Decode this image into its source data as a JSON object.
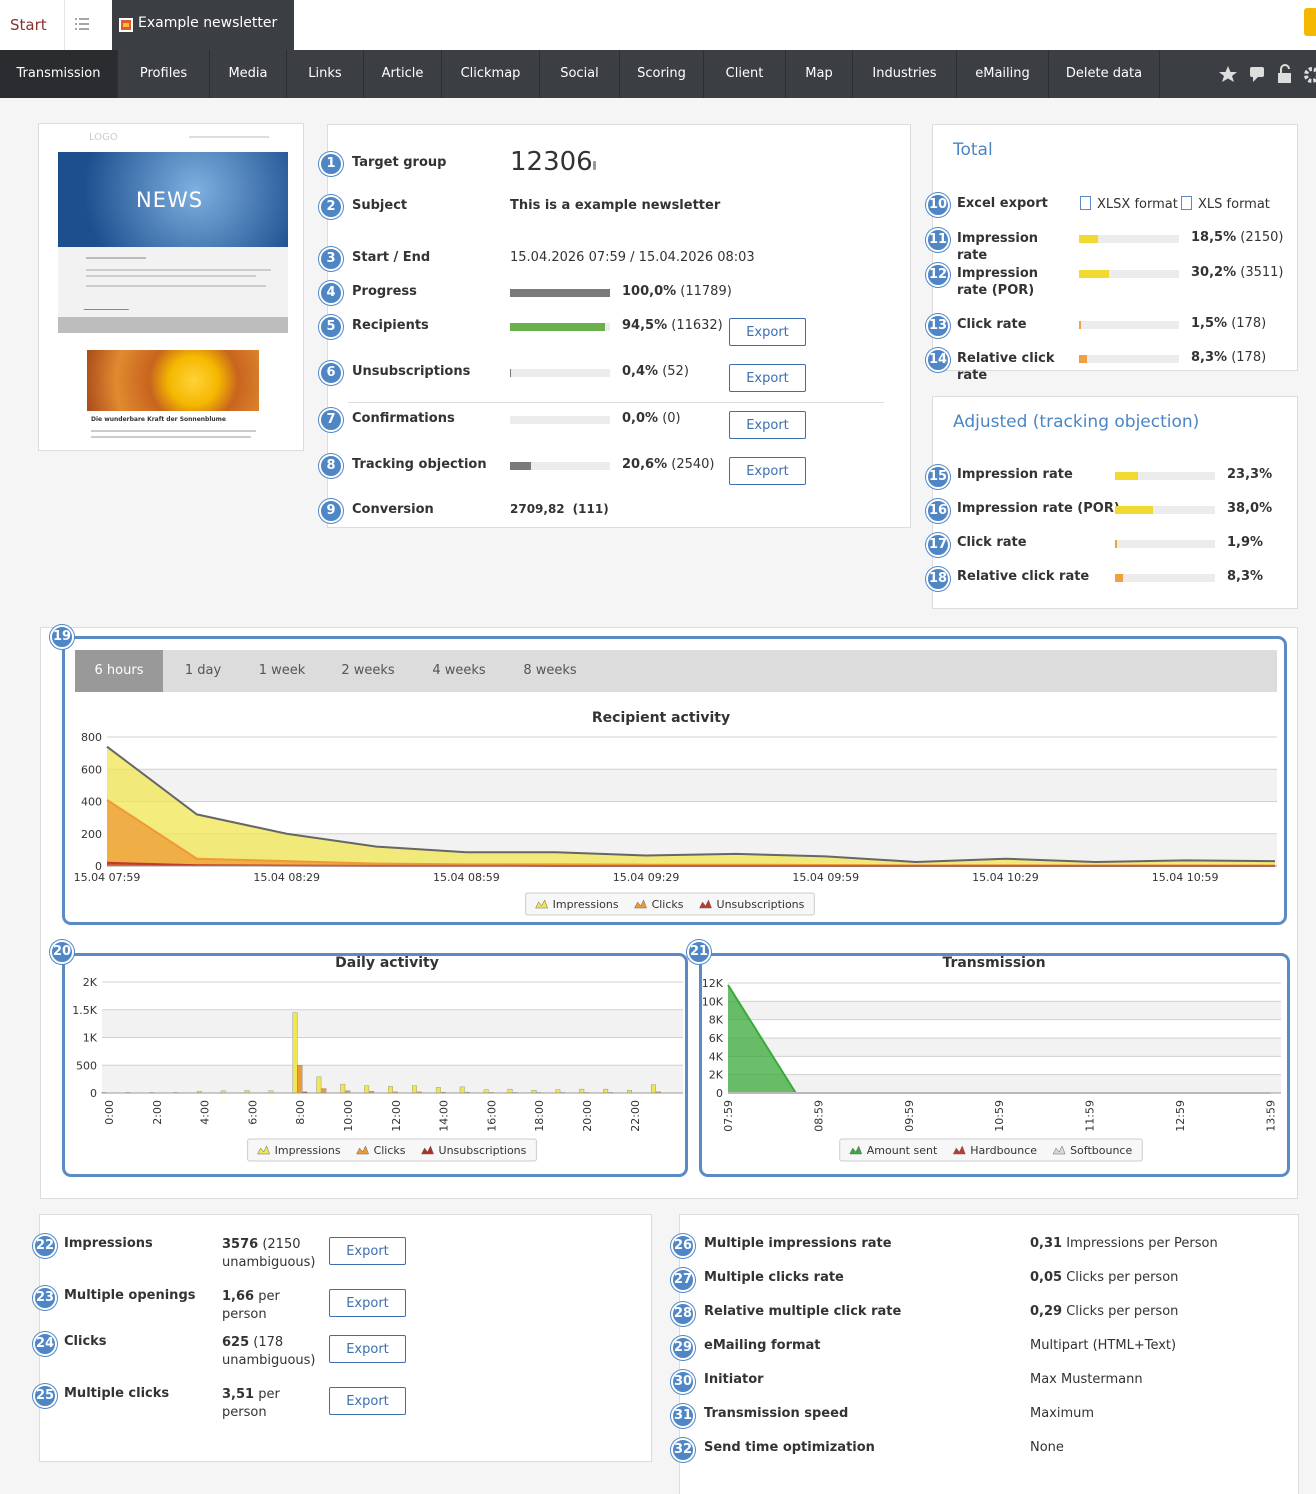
{
  "header": {
    "start": "Start",
    "tab": "Example newsletter"
  },
  "nav": [
    "Transmission",
    "Profiles",
    "Media",
    "Links",
    "Article",
    "Clickmap",
    "Social",
    "Scoring",
    "Client",
    "Map",
    "Industries",
    "eMailing",
    "Delete data"
  ],
  "preview": {
    "logo": "LOGO",
    "banner": "NEWS",
    "article_title": "Die wunderbare Kraft der Sonnenblume"
  },
  "summary": [
    {
      "badge": 1,
      "label": "Target group",
      "value": 12306
    },
    {
      "badge": 2,
      "label": "Subject",
      "text": "This is a example newsletter"
    },
    {
      "badge": 3,
      "label": "Start / End",
      "text": "15.04.2026 07:59 / 15.04.2026 08:03"
    },
    {
      "badge": 4,
      "label": "Progress",
      "percent": {
        "value": 100.0,
        "label": "100,0%"
      },
      "count": "(11789)",
      "color": "#7a7a7a"
    },
    {
      "badge": 5,
      "label": "Recipients",
      "percent": {
        "value": 94.5,
        "label": "94,5%"
      },
      "count": "(11632)",
      "color": "#6ab04c",
      "export": "Export"
    },
    {
      "badge": 6,
      "label": "Unsubscriptions",
      "percent": {
        "value": 0.4,
        "label": "0,4%"
      },
      "count": "(52)",
      "color": "#7a7a7a",
      "export": "Export"
    },
    {
      "badge": 7,
      "label": "Confirmations",
      "percent": {
        "value": 0.0,
        "label": "0,0%"
      },
      "count": "(0)",
      "color": "#7a7a7a",
      "export": "Export"
    },
    {
      "badge": 8,
      "label": "Tracking objection",
      "percent": {
        "value": 20.6,
        "label": "20,6%"
      },
      "count": "(2540)",
      "color": "#7a7a7a",
      "export": "Export"
    },
    {
      "badge": 9,
      "label": "Conversion",
      "amount": "2709,82",
      "count": "(111)"
    }
  ],
  "total": {
    "title": "Total",
    "excel_export": {
      "badge": 10,
      "label": "Excel export",
      "formats": [
        "XLSX format",
        "XLS format"
      ]
    },
    "rows": [
      {
        "badge": 11,
        "label": "Impression rate",
        "percent": {
          "value": 18.5,
          "label": "18,5%"
        },
        "count": "(2150)",
        "color": "#f2d930"
      },
      {
        "badge": 12,
        "label": "Impression rate (POR)",
        "percent": {
          "value": 30.2,
          "label": "30,2%"
        },
        "count": "(3511)",
        "color": "#f2d930"
      },
      {
        "badge": 13,
        "label": "Click rate",
        "percent": {
          "value": 1.5,
          "label": "1,5%"
        },
        "count": "(178)",
        "color": "#f0a040"
      },
      {
        "badge": 14,
        "label": "Relative click rate",
        "percent": {
          "value": 8.3,
          "label": "8,3%"
        },
        "count": "(178)",
        "color": "#f0a040"
      }
    ]
  },
  "adjusted": {
    "title": "Adjusted (tracking objection)",
    "rows": [
      {
        "badge": 15,
        "label": "Impression rate",
        "percent": {
          "value": 23.3,
          "label": "23,3%"
        },
        "color": "#f2d930"
      },
      {
        "badge": 16,
        "label": "Impression rate (POR)",
        "percent": {
          "value": 38.0,
          "label": "38,0%"
        },
        "color": "#f2d930"
      },
      {
        "badge": 17,
        "label": "Click rate",
        "percent": {
          "value": 1.9,
          "label": "1,9%"
        },
        "color": "#f0a040"
      },
      {
        "badge": 18,
        "label": "Relative click rate",
        "percent": {
          "value": 8.3,
          "label": "8,3%"
        },
        "color": "#f0a040"
      }
    ]
  },
  "chart_data": [
    {
      "type": "area",
      "badge": 19,
      "tabs": [
        "6 hours",
        "1 day",
        "1 week",
        "2 weeks",
        "4 weeks",
        "8 weeks"
      ],
      "title": "Recipient activity",
      "categories": [
        "15.04 07:59",
        null,
        "15.04 08:29",
        null,
        "15.04 08:59",
        null,
        "15.04 09:29",
        null,
        "15.04 09:59",
        null,
        "15.04 10:29",
        null,
        "15.04 10:59",
        null
      ],
      "series": [
        {
          "name": "Impressions",
          "color": "#f0e650",
          "values": [
            740,
            320,
            200,
            120,
            85,
            85,
            65,
            75,
            60,
            25,
            45,
            25,
            35,
            30
          ]
        },
        {
          "name": "Clicks",
          "color": "#ee9a35",
          "values": [
            410,
            45,
            30,
            15,
            10,
            10,
            8,
            8,
            6,
            4,
            5,
            3,
            4,
            3
          ]
        },
        {
          "name": "Unsubscriptions",
          "color": "#c0392b",
          "values": [
            20,
            5,
            2,
            1,
            1,
            0,
            0,
            0,
            0,
            0,
            0,
            0,
            0,
            0
          ]
        }
      ],
      "ylim": [
        0,
        800
      ],
      "yticks": [
        0,
        200,
        400,
        600,
        800
      ],
      "grid": true
    },
    {
      "type": "bar",
      "badge": 20,
      "title": "Daily activity",
      "categories": [
        "0:00",
        null,
        "2:00",
        null,
        "4:00",
        null,
        "6:00",
        null,
        "8:00",
        null,
        "10:00",
        null,
        "12:00",
        null,
        "14:00",
        null,
        "16:00",
        null,
        "18:00",
        null,
        "20:00",
        null,
        "22:00",
        null
      ],
      "series": [
        {
          "name": "Impressions",
          "color": "#f0e650",
          "values": [
            10,
            10,
            10,
            10,
            30,
            40,
            45,
            40,
            1450,
            290,
            160,
            130,
            120,
            130,
            100,
            110,
            60,
            70,
            50,
            60,
            70,
            70,
            50,
            150
          ]
        },
        {
          "name": "Clicks",
          "color": "#ee9a35",
          "values": [
            0,
            0,
            0,
            0,
            5,
            5,
            5,
            5,
            500,
            80,
            40,
            30,
            20,
            20,
            15,
            15,
            10,
            10,
            10,
            10,
            10,
            10,
            5,
            20
          ]
        },
        {
          "name": "Unsubscriptions",
          "color": "#b03020",
          "values": [
            0,
            0,
            0,
            0,
            0,
            0,
            0,
            0,
            20,
            5,
            2,
            1,
            1,
            1,
            0,
            0,
            0,
            0,
            0,
            0,
            0,
            0,
            0,
            0
          ]
        }
      ],
      "ylim": [
        0,
        2000
      ],
      "yticks": [
        0,
        500,
        {
          "value": 1000,
          "label": "1K"
        },
        {
          "value": 1500,
          "label": "1.5K"
        },
        {
          "value": 2000,
          "label": "2K"
        }
      ],
      "grid": true
    },
    {
      "type": "area",
      "badge": 21,
      "title": "Transmission",
      "categories": [
        "07:59",
        null,
        null,
        null,
        "08:59",
        null,
        null,
        null,
        "09:59",
        null,
        null,
        null,
        "10:59",
        null,
        null,
        null,
        "11:59",
        null,
        null,
        null,
        "12:59",
        null,
        null,
        null,
        "13:59"
      ],
      "series": [
        {
          "name": "Amount sent",
          "color": "#3aaa3a",
          "values": [
            11789,
            7860,
            3930,
            0,
            0,
            0,
            0,
            0,
            0,
            0,
            0,
            0,
            0,
            0,
            0,
            0,
            0,
            0,
            0,
            0,
            0,
            0,
            0,
            0,
            0
          ]
        },
        {
          "name": "Hardbounce",
          "color": "#c0392b",
          "values": [
            0,
            0,
            0,
            0,
            0,
            0,
            0,
            0,
            0,
            0,
            0,
            0,
            0,
            0,
            0,
            0,
            0,
            0,
            0,
            0,
            0,
            0,
            0,
            0,
            0
          ]
        },
        {
          "name": "Softbounce",
          "color": "#d8d8d8",
          "values": [
            0,
            0,
            0,
            0,
            0,
            0,
            0,
            0,
            0,
            0,
            0,
            0,
            0,
            0,
            0,
            0,
            0,
            0,
            0,
            0,
            0,
            0,
            0,
            0,
            0
          ]
        }
      ],
      "ylim": [
        0,
        12000
      ],
      "yticks": [
        0,
        {
          "value": 2000,
          "label": "2K"
        },
        {
          "value": 4000,
          "label": "4K"
        },
        {
          "value": 6000,
          "label": "6K"
        },
        {
          "value": 8000,
          "label": "8K"
        },
        {
          "value": 10000,
          "label": "10K"
        },
        {
          "value": 12000,
          "label": "12K"
        }
      ],
      "grid": true
    }
  ],
  "engagement": [
    {
      "badge": 22,
      "label": "Impressions",
      "value": "3576",
      "detail": "(2150 unambiguous)",
      "export": "Export"
    },
    {
      "badge": 23,
      "label": "Multiple openings",
      "value": "1,66",
      "detail": "per person",
      "export": "Export"
    },
    {
      "badge": 24,
      "label": "Clicks",
      "value": "625",
      "detail": "(178 unambiguous)",
      "export": "Export"
    },
    {
      "badge": 25,
      "label": "Multiple clicks",
      "value": "3,51",
      "detail": "per person",
      "export": "Export"
    }
  ],
  "details": [
    {
      "badge": 26,
      "label": "Multiple impressions rate",
      "value": "0,31",
      "detail": "Impressions per Person"
    },
    {
      "badge": 27,
      "label": "Multiple clicks rate",
      "value": "0,05",
      "detail": "Clicks per person"
    },
    {
      "badge": 28,
      "label": "Relative multiple click rate",
      "value": "0,29",
      "detail": "Clicks per person"
    },
    {
      "badge": 29,
      "label": "eMailing format",
      "detail": "Multipart (HTML+Text)"
    },
    {
      "badge": 30,
      "label": "Initiator",
      "detail": "Max Mustermann"
    },
    {
      "badge": 31,
      "label": "Transmission speed",
      "detail": "Maximum"
    },
    {
      "badge": 32,
      "label": "Send time optimization",
      "detail": "None"
    }
  ]
}
